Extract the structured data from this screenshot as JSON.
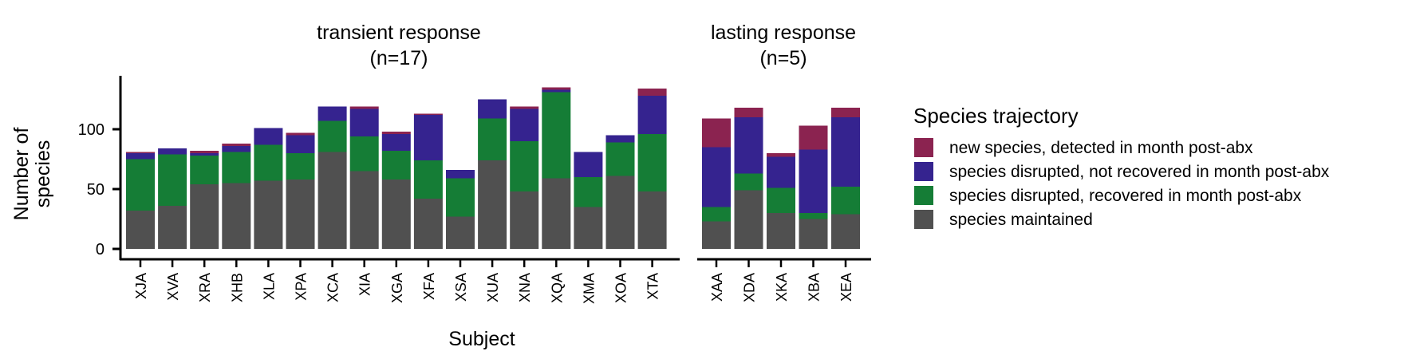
{
  "chart_data": {
    "type": "bar",
    "stacked": true,
    "ylabel_lines": [
      "Number of",
      "species"
    ],
    "xlabel": "Subject",
    "ylim": [
      0,
      140
    ],
    "yticks": [
      0,
      50,
      100
    ],
    "legend": {
      "title": "Species trajectory",
      "position": "right",
      "entries": [
        {
          "key": "new",
          "label": "new species, detected in month post-abx",
          "color": "#8B2350"
        },
        {
          "key": "not_recovered",
          "label": "species disrupted, not recovered in month post-abx",
          "color": "#35238F"
        },
        {
          "key": "recovered",
          "label": "species disrupted, recovered in month post-abx",
          "color": "#157D36"
        },
        {
          "key": "maintained",
          "label": "species maintained",
          "color": "#505050"
        }
      ]
    },
    "stack_order": [
      "maintained",
      "recovered",
      "not_recovered",
      "new"
    ],
    "panels": [
      {
        "title_lines": [
          "transient response",
          "(n=17)"
        ],
        "categories": [
          "XJA",
          "XVA",
          "XRA",
          "XHB",
          "XLA",
          "XPA",
          "XCA",
          "XIA",
          "XGA",
          "XFA",
          "XSA",
          "XUA",
          "XNA",
          "XQA",
          "XMA",
          "XOA",
          "XTA"
        ],
        "series": {
          "maintained": [
            32,
            36,
            54,
            55,
            57,
            58,
            81,
            65,
            58,
            42,
            27,
            74,
            48,
            59,
            35,
            61,
            48
          ],
          "recovered": [
            43,
            43,
            24,
            26,
            30,
            22,
            26,
            29,
            24,
            32,
            32,
            35,
            42,
            72,
            25,
            28,
            48
          ],
          "not_recovered": [
            5,
            5,
            2,
            5,
            14,
            15,
            12,
            23,
            14,
            38,
            7,
            16,
            27,
            2,
            21,
            6,
            32
          ],
          "new": [
            1,
            0,
            2,
            2,
            0,
            2,
            0,
            2,
            2,
            1,
            0,
            0,
            2,
            2,
            0,
            0,
            6
          ]
        }
      },
      {
        "title_lines": [
          "lasting response",
          "(n=5)"
        ],
        "categories": [
          "XAA",
          "XDA",
          "XKA",
          "XBA",
          "XEA"
        ],
        "series": {
          "maintained": [
            23,
            49,
            30,
            25,
            29
          ],
          "recovered": [
            12,
            14,
            21,
            5,
            23
          ],
          "not_recovered": [
            50,
            47,
            26,
            53,
            58
          ],
          "new": [
            24,
            8,
            3,
            20,
            8
          ]
        }
      }
    ]
  }
}
